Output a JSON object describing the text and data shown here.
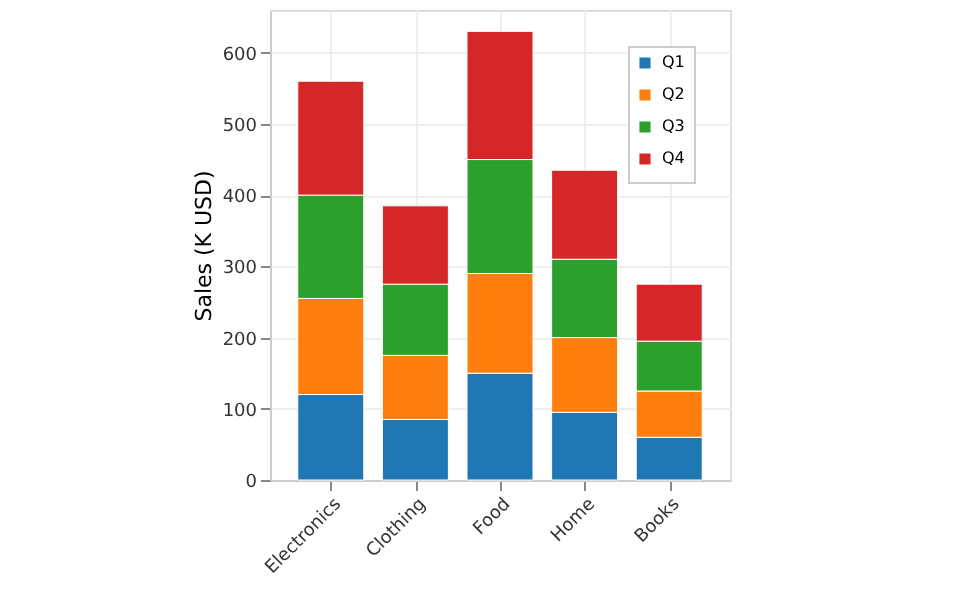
{
  "chart_data": {
    "type": "bar",
    "stacked": true,
    "ylabel": "Sales (K USD)",
    "categories": [
      "Electronics",
      "Clothing",
      "Food",
      "Home",
      "Books"
    ],
    "series": [
      {
        "name": "Q1",
        "color": "#1f77b4",
        "values": [
          120,
          85,
          150,
          95,
          60
        ]
      },
      {
        "name": "Q2",
        "color": "#ff7f0e",
        "values": [
          135,
          90,
          140,
          105,
          65
        ]
      },
      {
        "name": "Q3",
        "color": "#2ca02c",
        "values": [
          145,
          100,
          160,
          110,
          70
        ]
      },
      {
        "name": "Q4",
        "color": "#d62728",
        "values": [
          160,
          110,
          180,
          125,
          80
        ]
      }
    ],
    "ylim": [
      0,
      660
    ],
    "yticks": [
      0,
      100,
      200,
      300,
      400,
      500,
      600
    ],
    "grid": true,
    "legend": "top right"
  }
}
